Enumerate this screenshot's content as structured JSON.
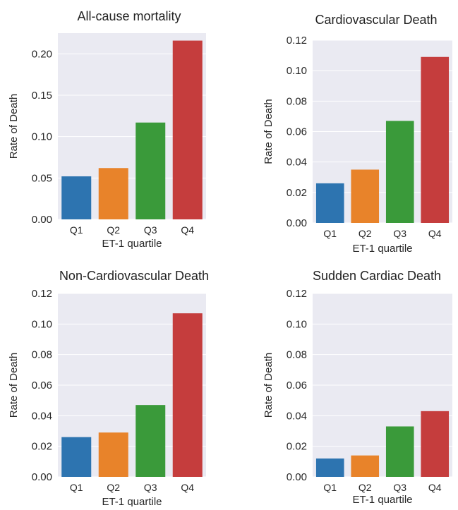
{
  "colors": {
    "background": "#eaeaf2",
    "grid": "#ffffff",
    "bars": [
      "#2d74b0",
      "#e8832a",
      "#3a9a3a",
      "#c53d3d"
    ]
  },
  "chart_data": [
    {
      "type": "bar",
      "title": "All-cause mortality",
      "xlabel": "",
      "ylabel": "Rate of Death",
      "categories": [
        "Q1",
        "Q2",
        "Q3",
        "Q4"
      ],
      "values": [
        0.052,
        0.062,
        0.117,
        0.216
      ],
      "yticks": [
        "0.00",
        "0.05",
        "0.10",
        "0.15",
        "0.20"
      ],
      "ylim": [
        0,
        0.225
      ],
      "grid": true
    },
    {
      "type": "bar",
      "title": "Cardiovascular Death",
      "xlabel": "ET-1 quartile",
      "ylabel": "Rate of Death",
      "categories": [
        "Q1",
        "Q2",
        "Q3",
        "Q4"
      ],
      "values": [
        0.026,
        0.035,
        0.067,
        0.109
      ],
      "yticks": [
        "0.00",
        "0.02",
        "0.04",
        "0.06",
        "0.08",
        "0.10",
        "0.12"
      ],
      "ylim": [
        0,
        0.12
      ],
      "grid": true
    },
    {
      "type": "bar",
      "title": "Non-Cardiovascular Death",
      "xlabel": "ET-1 quartile",
      "ylabel": "Rate of Death",
      "categories": [
        "Q1",
        "Q2",
        "Q3",
        "Q4"
      ],
      "values": [
        0.026,
        0.029,
        0.047,
        0.107
      ],
      "yticks": [
        "0.00",
        "0.02",
        "0.04",
        "0.06",
        "0.08",
        "0.10",
        "0.12"
      ],
      "ylim": [
        0,
        0.12
      ],
      "grid": true
    },
    {
      "type": "bar",
      "title": "Sudden Cardiac Death",
      "xlabel": "ET-1 quartile",
      "ylabel": "Rate of Death",
      "categories": [
        "Q1",
        "Q2",
        "Q3",
        "Q4"
      ],
      "values": [
        0.012,
        0.014,
        0.033,
        0.043
      ],
      "yticks": [
        "0.00",
        "0.02",
        "0.04",
        "0.06",
        "0.08",
        "0.10",
        "0.12"
      ],
      "ylim": [
        0,
        0.12
      ],
      "grid": true
    }
  ],
  "shared_xlabel": "ET-1 quartile"
}
